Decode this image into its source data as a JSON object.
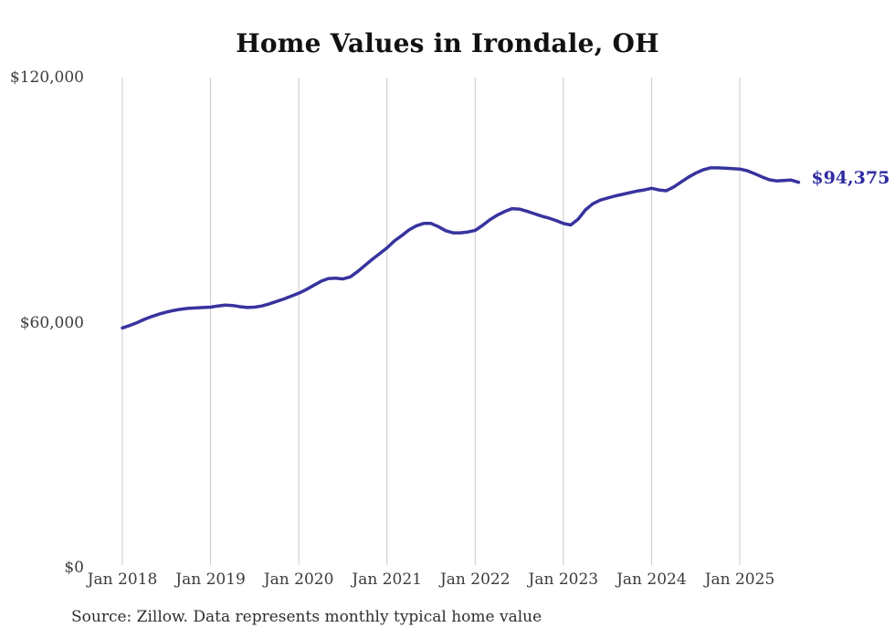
{
  "colors": {
    "line": "#37339e",
    "end_label": "#2f2ba0",
    "grid": "#c9c9c9",
    "axis_text": "#3c3c3c",
    "title_text": "#111111",
    "background": "#ffffff"
  },
  "chart_data": {
    "type": "line",
    "title": "Home Values in Irondale, OH",
    "source": "Source: Zillow. Data represents monthly typical home value",
    "end_label": "$94,375",
    "xlabel": "",
    "ylabel": "",
    "ylim": [
      0,
      120000
    ],
    "grid": "vertical-only",
    "legend": "none",
    "yticks": [
      {
        "value": 0,
        "label": "$0"
      },
      {
        "value": 60000,
        "label": "$60,000"
      },
      {
        "value": 120000,
        "label": "$120,000"
      }
    ],
    "xticks": [
      "Jan 2018",
      "Jan 2019",
      "Jan 2020",
      "Jan 2021",
      "Jan 2022",
      "Jan 2023",
      "Jan 2024",
      "Jan 2025"
    ],
    "series": [
      {
        "name": "Monthly typical home value",
        "x": [
          "2018-01",
          "2018-02",
          "2018-03",
          "2018-04",
          "2018-05",
          "2018-06",
          "2018-07",
          "2018-08",
          "2018-09",
          "2018-10",
          "2018-11",
          "2018-12",
          "2019-01",
          "2019-02",
          "2019-03",
          "2019-04",
          "2019-05",
          "2019-06",
          "2019-07",
          "2019-08",
          "2019-09",
          "2019-10",
          "2019-11",
          "2019-12",
          "2020-01",
          "2020-02",
          "2020-03",
          "2020-04",
          "2020-05",
          "2020-06",
          "2020-07",
          "2020-08",
          "2020-09",
          "2020-10",
          "2020-11",
          "2020-12",
          "2021-01",
          "2021-02",
          "2021-03",
          "2021-04",
          "2021-05",
          "2021-06",
          "2021-07",
          "2021-08",
          "2021-09",
          "2021-10",
          "2021-11",
          "2021-12",
          "2022-01",
          "2022-02",
          "2022-03",
          "2022-04",
          "2022-05",
          "2022-06",
          "2022-07",
          "2022-08",
          "2022-09",
          "2022-10",
          "2022-11",
          "2022-12",
          "2023-01",
          "2023-02",
          "2023-03",
          "2023-04",
          "2023-05",
          "2023-06",
          "2023-07",
          "2023-08",
          "2023-09",
          "2023-10",
          "2023-11",
          "2023-12",
          "2024-01",
          "2024-02",
          "2024-03",
          "2024-04",
          "2024-05",
          "2024-06",
          "2024-07",
          "2024-08",
          "2024-09",
          "2024-10",
          "2024-11",
          "2024-12",
          "2025-01",
          "2025-02",
          "2025-03",
          "2025-04",
          "2025-05",
          "2025-06",
          "2025-07",
          "2025-08",
          "2025-09"
        ],
        "values": [
          58700,
          59300,
          60000,
          60800,
          61500,
          62100,
          62600,
          63000,
          63300,
          63500,
          63600,
          63700,
          63800,
          64100,
          64300,
          64200,
          63900,
          63700,
          63800,
          64100,
          64600,
          65200,
          65800,
          66500,
          67200,
          68100,
          69100,
          70100,
          70800,
          70900,
          70700,
          71200,
          72500,
          74000,
          75500,
          76900,
          78300,
          80000,
          81300,
          82700,
          83700,
          84300,
          84300,
          83500,
          82500,
          82000,
          82000,
          82200,
          82600,
          83800,
          85200,
          86300,
          87200,
          87900,
          87800,
          87300,
          86700,
          86100,
          85600,
          85000,
          84300,
          83900,
          85300,
          87600,
          89100,
          90000,
          90500,
          91000,
          91400,
          91800,
          92200,
          92500,
          92900,
          92500,
          92300,
          93200,
          94400,
          95600,
          96600,
          97400,
          97900,
          97900,
          97800,
          97700,
          97600,
          97200,
          96500,
          95700,
          95000,
          94700,
          94800,
          94900,
          94375
        ]
      }
    ]
  }
}
